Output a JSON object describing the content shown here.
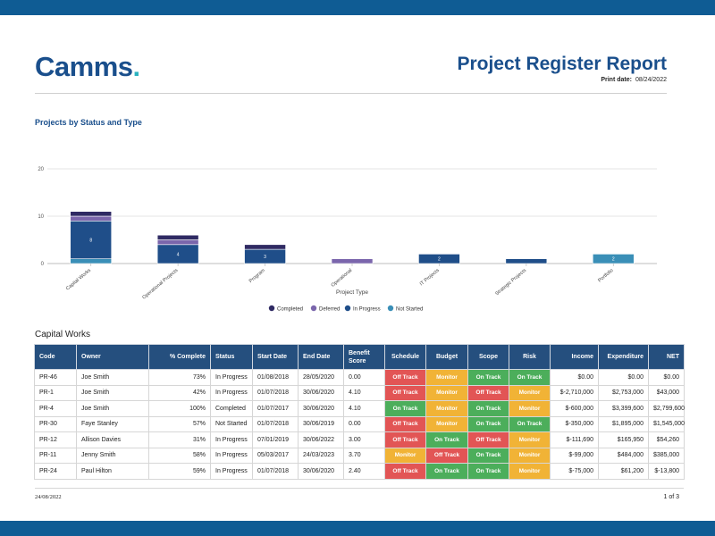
{
  "header": {
    "logo_text": "Camms",
    "logo_dot": ".",
    "report_title": "Project Register Report",
    "print_label": "Print date:",
    "print_date": "08/24/2022"
  },
  "colors": {
    "band": "#0f5c94",
    "title": "#1a4f8c",
    "table_header": "#254f7e",
    "off_track": "#e25555",
    "monitor": "#f1b336",
    "on_track": "#4cae5b"
  },
  "chart_data": {
    "type": "bar",
    "stacked": true,
    "title": "Projects by Status and Type",
    "xlabel": "Project Type",
    "ylabel": "",
    "ylim": [
      0,
      20
    ],
    "yticks": [
      0,
      10,
      20
    ],
    "grid": true,
    "legend_position": "bottom",
    "categories": [
      "Capital Works",
      "Operational Projects",
      "Program",
      "Operational",
      "IT Projects",
      "Strategic Projects",
      "Portfolio"
    ],
    "series": [
      {
        "name": "Not Started",
        "color": "#3a8fb7",
        "values": [
          1,
          0,
          0,
          0,
          0,
          0,
          2
        ]
      },
      {
        "name": "In Progress",
        "color": "#1f4e89",
        "values": [
          8,
          4,
          3,
          0,
          2,
          1,
          0
        ]
      },
      {
        "name": "Deferred",
        "color": "#7b66ac",
        "values": [
          1,
          1,
          0,
          1,
          0,
          0,
          0
        ]
      },
      {
        "name": "Completed",
        "color": "#2f2a63",
        "values": [
          1,
          1,
          1,
          0,
          0,
          0,
          0
        ]
      }
    ],
    "legend_order": [
      "Completed",
      "Deferred",
      "In Progress",
      "Not Started"
    ]
  },
  "section": {
    "title": "Capital Works"
  },
  "table": {
    "columns": [
      "Code",
      "Owner",
      "% Complete",
      "Status",
      "Start Date",
      "End Date",
      "Benefit Score",
      "Schedule",
      "Budget",
      "Scope",
      "Risk",
      "Income",
      "Expenditure",
      "NET"
    ],
    "rows": [
      [
        "PR-46",
        "Joe Smith",
        "73%",
        "In Progress",
        "01/08/2018",
        "28/05/2020",
        "0.00",
        "Off Track",
        "Monitor",
        "On Track",
        "On Track",
        "$0.00",
        "$0.00",
        "$0.00"
      ],
      [
        "PR-1",
        "Joe Smith",
        "42%",
        "In Progress",
        "01/07/2018",
        "30/06/2020",
        "4.10",
        "Off Track",
        "Monitor",
        "Off Track",
        "Monitor",
        "$-2,710,000",
        "$2,753,000",
        "$43,000"
      ],
      [
        "PR-4",
        "Joe Smith",
        "100%",
        "Completed",
        "01/07/2017",
        "30/06/2020",
        "4.10",
        "On Track",
        "Monitor",
        "On Track",
        "Monitor",
        "$-600,000",
        "$3,399,600",
        "$2,799,600"
      ],
      [
        "PR-30",
        "Faye Stanley",
        "57%",
        "Not Started",
        "01/07/2018",
        "30/06/2019",
        "0.00",
        "Off Track",
        "Monitor",
        "On Track",
        "On Track",
        "$-350,000",
        "$1,895,000",
        "$1,545,000"
      ],
      [
        "PR-12",
        "Allison Davies",
        "31%",
        "In Progress",
        "07/01/2019",
        "30/06/2022",
        "3.00",
        "Off Track",
        "On Track",
        "Off Track",
        "Monitor",
        "$-111,690",
        "$165,950",
        "$54,260"
      ],
      [
        "PR-11",
        "Jenny Smith",
        "58%",
        "In Progress",
        "05/03/2017",
        "24/03/2023",
        "3.70",
        "Monitor",
        "Off Track",
        "On Track",
        "Monitor",
        "$-99,000",
        "$484,000",
        "$385,000"
      ],
      [
        "PR-24",
        "Paul Hilton",
        "59%",
        "In Progress",
        "01/07/2018",
        "30/06/2020",
        "2.40",
        "Off Track",
        "On Track",
        "On Track",
        "Monitor",
        "$-75,000",
        "$61,200",
        "$-13,800"
      ]
    ]
  },
  "footer": {
    "date": "24/08/2022",
    "page": "1 of 3"
  }
}
